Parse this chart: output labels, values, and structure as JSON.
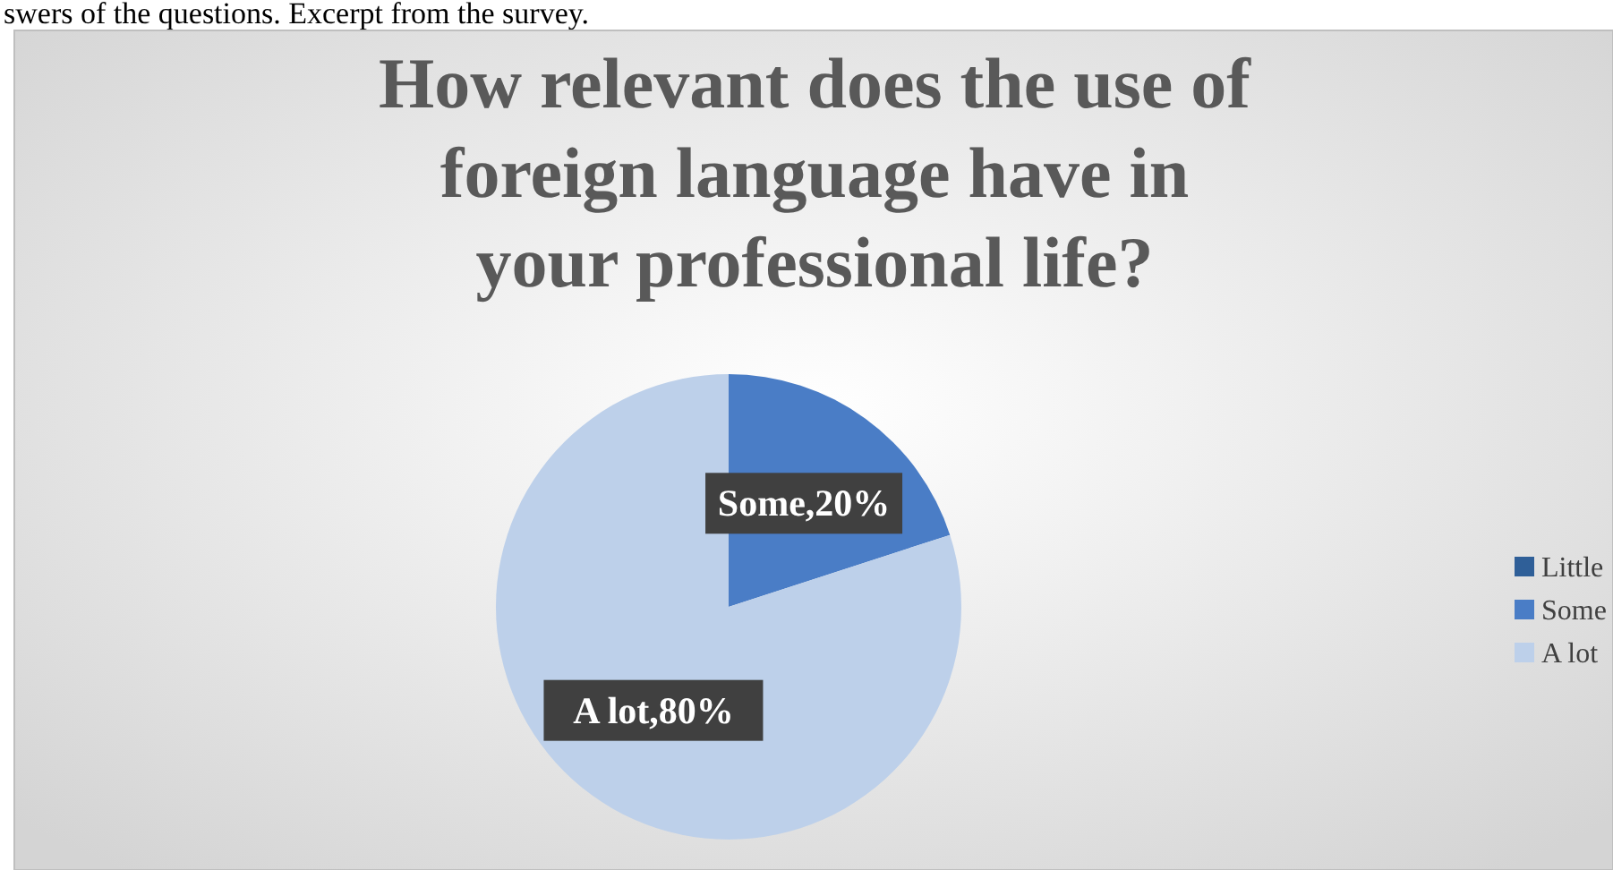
{
  "chart_data": {
    "type": "pie",
    "title": "How relevant does the use of foreign language have in your professional life?",
    "annotations": [
      "swers of the questions. Excerpt from the survey."
    ],
    "categories": [
      "Little",
      "Some",
      "A lot"
    ],
    "values": [
      0,
      20,
      80
    ],
    "colors": [
      "#2f5f98",
      "#4a7dc6",
      "#bdd0ea"
    ],
    "value_labels": [
      null,
      "Some,20%",
      "A lot,80%"
    ],
    "legend": "right"
  }
}
